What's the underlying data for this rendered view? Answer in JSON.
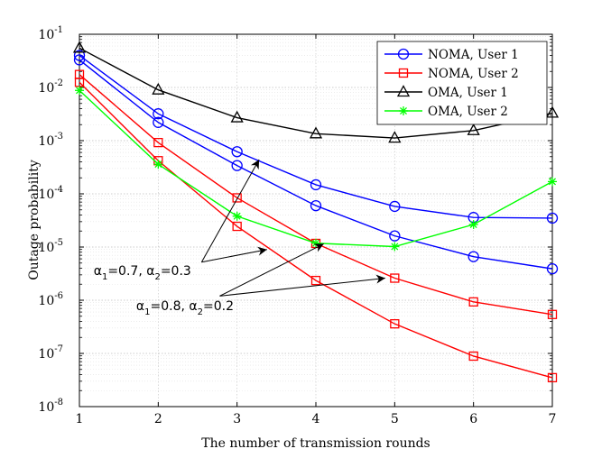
{
  "chart_data": {
    "type": "line",
    "xlabel": "The number of transmission rounds",
    "ylabel": "Outage probability",
    "x": [
      1,
      2,
      3,
      4,
      5,
      6,
      7
    ],
    "xlim": [
      1,
      7
    ],
    "ylim": [
      1e-08,
      0.1
    ],
    "yscale": "log",
    "x_ticks": [
      "1",
      "2",
      "3",
      "4",
      "5",
      "6",
      "7"
    ],
    "y_ticks": [
      {
        "value": 1e-08,
        "label": "10",
        "exp": "-8"
      },
      {
        "value": 1e-07,
        "label": "10",
        "exp": "-7"
      },
      {
        "value": 1e-06,
        "label": "10",
        "exp": "-6"
      },
      {
        "value": 1e-05,
        "label": "10",
        "exp": "-5"
      },
      {
        "value": 0.0001,
        "label": "10",
        "exp": "-4"
      },
      {
        "value": 0.001,
        "label": "10",
        "exp": "-3"
      },
      {
        "value": 0.01,
        "label": "10",
        "exp": "-2"
      },
      {
        "value": 0.1,
        "label": "10",
        "exp": "-1"
      }
    ],
    "grid": true,
    "legend_position": "top-right",
    "legend": [
      {
        "label": "NOMA, User 1",
        "color": "#0000ff",
        "marker": "circle"
      },
      {
        "label": "NOMA, User 2",
        "color": "#ff0000",
        "marker": "square"
      },
      {
        "label": "OMA, User 1",
        "color": "#000000",
        "marker": "triangle"
      },
      {
        "label": "OMA, User 2",
        "color": "#00ff00",
        "marker": "asterisk"
      }
    ],
    "series": [
      {
        "legend": 0,
        "color": "#0000ff",
        "marker": "circle",
        "values": [
          0.04,
          0.0032,
          0.00062,
          0.000148,
          5.8e-05,
          3.6e-05,
          3.5e-05
        ]
      },
      {
        "legend": 0,
        "color": "#0000ff",
        "marker": "circle",
        "values": [
          0.033,
          0.0022,
          0.00034,
          6e-05,
          1.62e-05,
          6.6e-06,
          3.9e-06
        ]
      },
      {
        "legend": 1,
        "color": "#ff0000",
        "marker": "square",
        "values": [
          0.0175,
          0.00092,
          8.4e-05,
          1.17e-05,
          2.6e-06,
          9.3e-07,
          5.4e-07
        ]
      },
      {
        "legend": 1,
        "color": "#ff0000",
        "marker": "square",
        "values": [
          0.0125,
          0.00042,
          2.45e-05,
          2.35e-06,
          3.6e-07,
          8.9e-08,
          3.5e-08
        ]
      },
      {
        "legend": 2,
        "color": "#000000",
        "marker": "triangle",
        "values": [
          0.055,
          0.009,
          0.0027,
          0.00135,
          0.00112,
          0.00155,
          0.0033
        ]
      },
      {
        "legend": 3,
        "color": "#00ff00",
        "marker": "asterisk",
        "values": [
          0.0088,
          0.00036,
          3.8e-05,
          1.18e-05,
          1.02e-05,
          2.65e-05,
          0.00017
        ]
      }
    ],
    "annotations": [
      {
        "text_main": "α",
        "sub1": "1",
        "eq1": "=0.7, α",
        "sub2": "2",
        "eq2": "=0.3",
        "text_x": 1.18,
        "text_y": 3e-06,
        "arrows": [
          {
            "from": [
              2.55,
              5.2e-06
            ],
            "to": [
              3.28,
              0.00044
            ]
          },
          {
            "from": [
              2.55,
              5.2e-06
            ],
            "to": [
              3.38,
              9e-06
            ]
          }
        ]
      },
      {
        "text_main": "α",
        "sub1": "1",
        "eq1": "=0.8, α",
        "sub2": "2",
        "eq2": "=0.2",
        "text_x": 1.72,
        "text_y": 6.5e-07,
        "arrows": [
          {
            "from": [
              2.78,
              1.2e-06
            ],
            "to": [
              4.1,
              1.15e-05
            ]
          },
          {
            "from": [
              2.78,
              1.2e-06
            ],
            "to": [
              4.88,
              2.6e-06
            ]
          }
        ]
      }
    ]
  }
}
